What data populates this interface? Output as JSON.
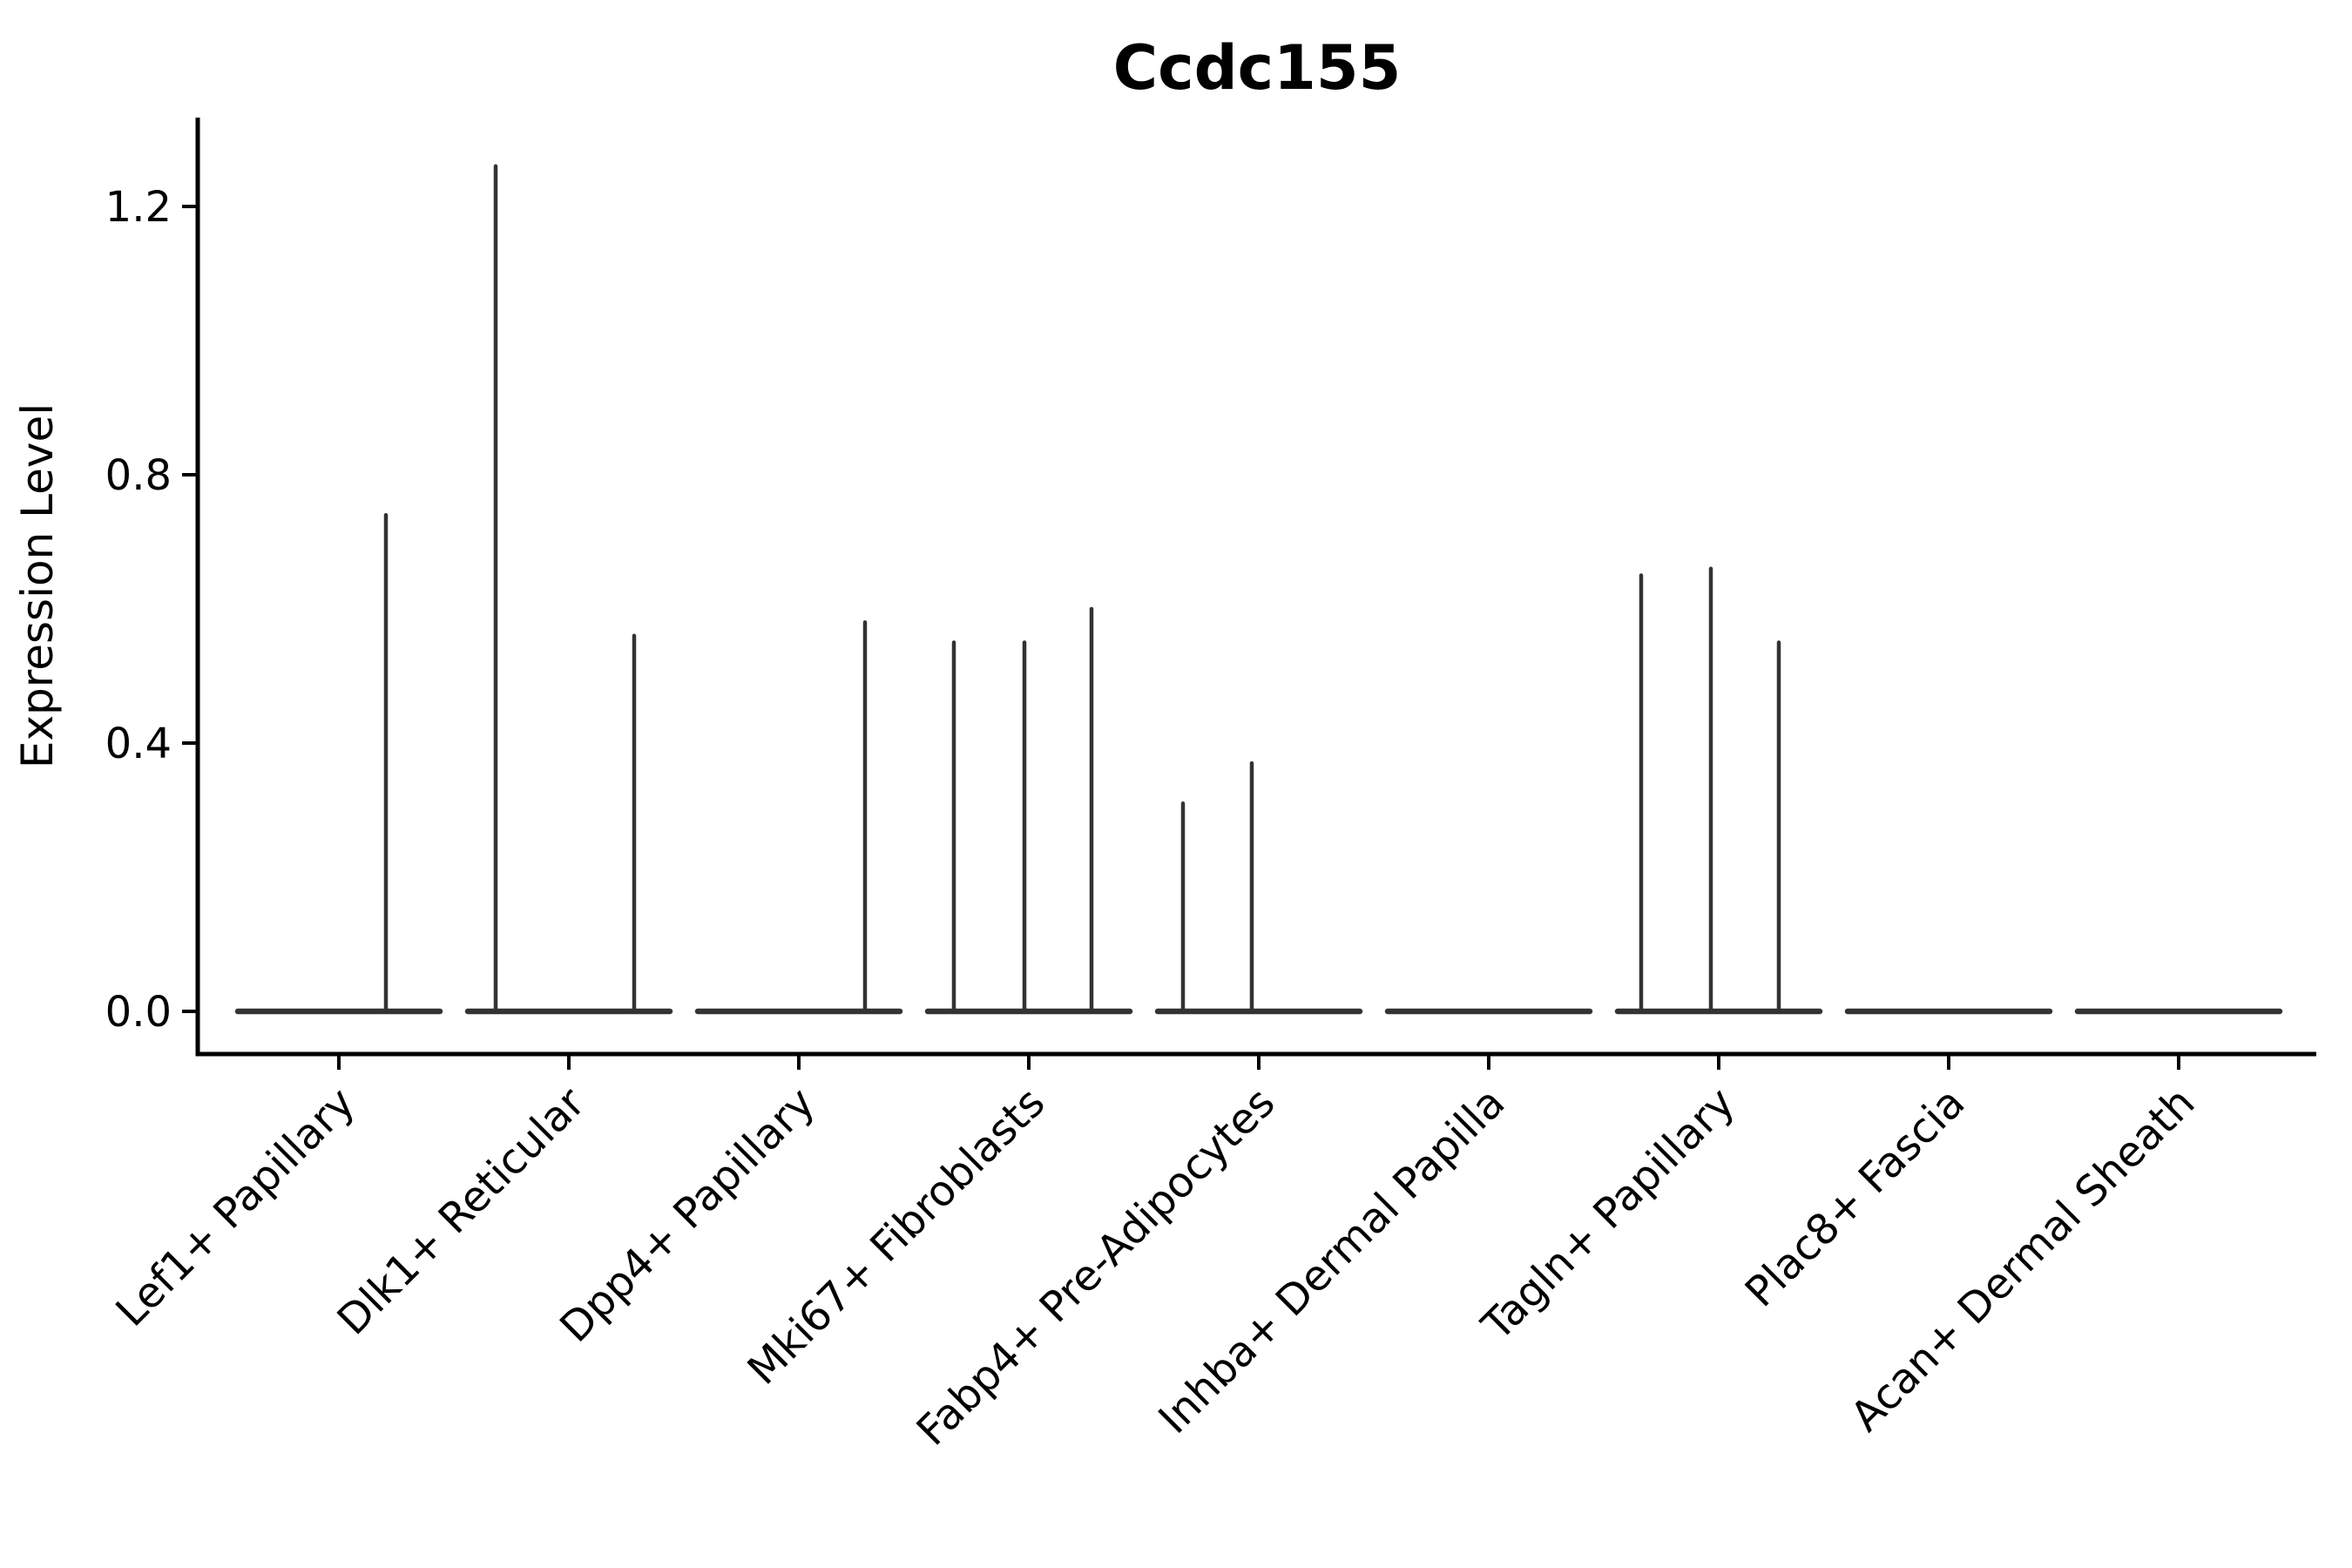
{
  "figure": {
    "background": "#ffffff",
    "text_color": "#000000",
    "axis_color": "#000000",
    "violin_color": "#333333"
  },
  "chart_data": {
    "type": "violin",
    "title": "Ccdc155",
    "xlabel": "",
    "ylabel": "Expression Level",
    "ylim": [
      -0.064,
      1.33
    ],
    "grid": false,
    "legend": null,
    "yticks": [
      {
        "value": 0.0,
        "label": "0.0"
      },
      {
        "value": 0.4,
        "label": "0.4"
      },
      {
        "value": 0.8,
        "label": "0.8"
      },
      {
        "value": 1.2,
        "label": "1.2"
      }
    ],
    "description": "Violin plot of Ccdc155 expression per fibroblast cluster; expression is near zero in all clusters (flat collapsed violins) with a few thin density spikes from rare expressing cells.",
    "categories": [
      {
        "label": "Lef1+ Papillary",
        "needles": [
          {
            "dx": 54,
            "value": 0.74
          }
        ]
      },
      {
        "label": "Dlk1+ Reticular",
        "needles": [
          {
            "dx": -84,
            "value": 1.26
          },
          {
            "dx": 75,
            "value": 0.56
          }
        ]
      },
      {
        "label": "Dpp4+ Papillary",
        "needles": [
          {
            "dx": 76,
            "value": 0.58
          }
        ]
      },
      {
        "label": "Mki67+ Fibroblasts",
        "needles": [
          {
            "dx": -86,
            "value": 0.55
          },
          {
            "dx": -5,
            "value": 0.55
          },
          {
            "dx": 72,
            "value": 0.6
          }
        ]
      },
      {
        "label": "Fabp4+ Pre-Adipocytes",
        "needles": [
          {
            "dx": -87,
            "value": 0.31
          },
          {
            "dx": -8,
            "value": 0.37
          }
        ]
      },
      {
        "label": "Inhba+ Dermal Papilla",
        "needles": []
      },
      {
        "label": "Tagln+ Papillary",
        "needles": [
          {
            "dx": -89,
            "value": 0.65
          },
          {
            "dx": -9,
            "value": 0.66
          },
          {
            "dx": 69,
            "value": 0.55
          }
        ]
      },
      {
        "label": "Plac8+ Fascia",
        "needles": []
      },
      {
        "label": "Acan+ Dermal Sheath",
        "needles": []
      }
    ]
  }
}
